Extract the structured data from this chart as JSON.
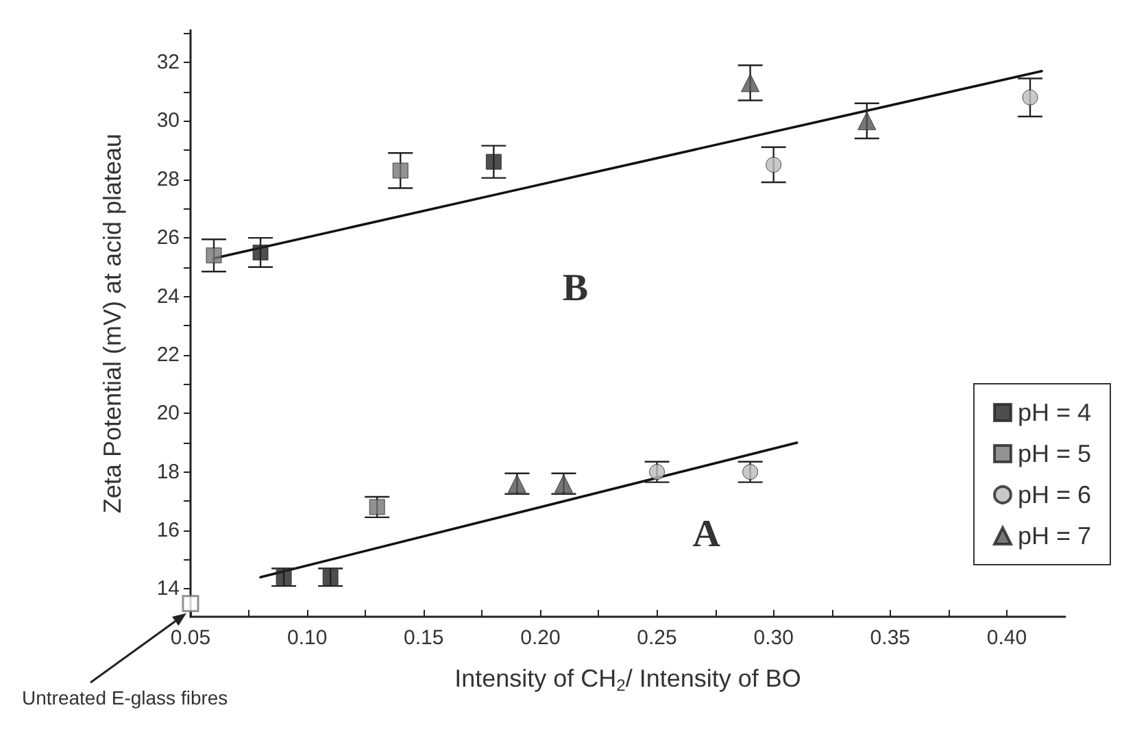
{
  "chart_data": {
    "type": "scatter",
    "xlabel": "Intensity of CH$_{2}$/ Intensity of BO",
    "ylabel": "Zeta Potential (mV) at acid plateau",
    "xlim": [
      0.05,
      0.425
    ],
    "ylim": [
      13.05,
      33.1
    ],
    "xticks": [
      0.05,
      {
        "value": 0.075,
        "label": null
      },
      {
        "value": 0.1,
        "label": "0.10"
      },
      {
        "value": 0.125,
        "label": null
      },
      0.15,
      {
        "value": 0.175,
        "label": null
      },
      {
        "value": 0.2,
        "label": "0.20"
      },
      {
        "value": 0.225,
        "label": null
      },
      0.25,
      {
        "value": 0.275,
        "label": null
      },
      {
        "value": 0.3,
        "label": "0.30"
      },
      {
        "value": 0.325,
        "label": null
      },
      0.35,
      {
        "value": 0.375,
        "label": null
      },
      {
        "value": 0.4,
        "label": "0.40"
      }
    ],
    "yticks": [
      14,
      {
        "value": 15,
        "label": null
      },
      16,
      {
        "value": 17,
        "label": null
      },
      18,
      {
        "value": 19,
        "label": null
      },
      20,
      {
        "value": 21,
        "label": null
      },
      22,
      {
        "value": 23,
        "label": null
      },
      24,
      {
        "value": 25,
        "label": null
      },
      26,
      {
        "value": 27,
        "label": null
      },
      28,
      {
        "value": 29,
        "label": null
      },
      30,
      {
        "value": 31,
        "label": null
      },
      32,
      {
        "value": 33,
        "label": null
      }
    ],
    "grid": false,
    "legend": "right",
    "series": [
      {
        "name": "pH = 4",
        "color": "#222222",
        "marker": "square",
        "x": [
          0.08,
          0.18,
          0.09,
          0.11
        ],
        "values": [
          25.5,
          28.6,
          14.4,
          14.4
        ],
        "errors": [
          0.5,
          0.55,
          0.3,
          0.3
        ]
      },
      {
        "name": "pH = 5",
        "color": "#777777",
        "marker": "square",
        "x": [
          0.06,
          0.14,
          0.13
        ],
        "values": [
          25.4,
          28.3,
          16.8
        ],
        "errors": [
          0.55,
          0.6,
          0.35
        ]
      },
      {
        "name": "pH = 6",
        "color": "#bbbbbb",
        "marker": "circle",
        "x": [
          0.3,
          0.41,
          0.25,
          0.29
        ],
        "values": [
          28.5,
          30.8,
          18.0,
          18.0
        ],
        "errors": [
          0.6,
          0.65,
          0.35,
          0.35
        ]
      },
      {
        "name": "pH = 7",
        "color": "#555555",
        "marker": "triangle",
        "x": [
          0.29,
          0.34,
          0.19,
          0.21
        ],
        "values": [
          31.3,
          30.0,
          17.6,
          17.6
        ],
        "errors": [
          0.6,
          0.6,
          0.35,
          0.35
        ]
      },
      {
        "color": "#777777",
        "marker": "square",
        "x": [
          0.05
        ],
        "values": [
          13.5
        ]
      },
      {
        "type": "line",
        "color": "#111111",
        "marker": "none",
        "line_style": "solid",
        "x": [
          0.06,
          0.415
        ],
        "values": [
          25.3,
          31.7
        ]
      },
      {
        "type": "line",
        "color": "#111111",
        "marker": "none",
        "line_style": "solid",
        "x": [
          0.08,
          0.31
        ],
        "values": [
          14.4,
          19.0
        ]
      }
    ],
    "annotations": [
      "Untreated E-glass fibres",
      "B",
      "A"
    ]
  }
}
